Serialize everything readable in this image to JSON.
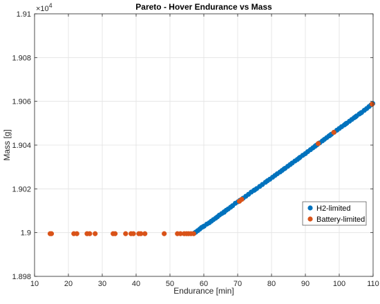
{
  "chart_data": {
    "type": "scatter",
    "title": "Pareto - Hover Endurance vs Mass",
    "xlabel": "Endurance [min]",
    "ylabel": "Mass [g]",
    "xlim": [
      10,
      110
    ],
    "ylim": [
      18980,
      19100
    ],
    "x_ticks": [
      10,
      20,
      30,
      40,
      50,
      60,
      70,
      80,
      90,
      100,
      110
    ],
    "y_ticks": [
      18980,
      19000,
      19020,
      19040,
      19060,
      19080,
      19100
    ],
    "y_tick_labels": [
      "1.898",
      "1.9",
      "1.902",
      "1.904",
      "1.906",
      "1.908",
      "1.91"
    ],
    "y_exponent": {
      "base": "×10",
      "power": "4"
    },
    "grid": true,
    "legend": "right",
    "series": [
      {
        "name": "H2-limited",
        "color": "#0072BD",
        "points": [
          [
            57.2,
            18999.8
          ],
          [
            57.6,
            19000.2
          ],
          [
            58.2,
            19000.9
          ],
          [
            58.8,
            19001.6
          ],
          [
            59.3,
            19002.3
          ],
          [
            60.1,
            19003.0
          ],
          [
            60.9,
            19003.9
          ],
          [
            61.6,
            19004.5
          ],
          [
            62.2,
            19005.2
          ],
          [
            62.8,
            19005.9
          ],
          [
            63.5,
            19006.6
          ],
          [
            64.0,
            19007.2
          ],
          [
            64.6,
            19008.0
          ],
          [
            65.3,
            19008.7
          ],
          [
            66.0,
            19009.5
          ],
          [
            66.6,
            19010.2
          ],
          [
            67.2,
            19010.8
          ],
          [
            67.9,
            19011.6
          ],
          [
            68.5,
            19012.3
          ],
          [
            69.3,
            19013.4
          ],
          [
            70.1,
            19014.1
          ],
          [
            70.7,
            19014.8
          ],
          [
            71.6,
            19015.7
          ],
          [
            72.4,
            19016.6
          ],
          [
            73.2,
            19017.5
          ],
          [
            74.0,
            19018.5
          ],
          [
            74.8,
            19019.3
          ],
          [
            75.6,
            19020.1
          ],
          [
            76.5,
            19021.1
          ],
          [
            77.3,
            19022.0
          ],
          [
            78.2,
            19023.0
          ],
          [
            78.8,
            19023.7
          ],
          [
            79.5,
            19024.4
          ],
          [
            80.3,
            19025.3
          ],
          [
            81.0,
            19026.1
          ],
          [
            81.7,
            19026.9
          ],
          [
            82.5,
            19027.7
          ],
          [
            83.1,
            19028.4
          ],
          [
            84.0,
            19029.4
          ],
          [
            84.8,
            19030.3
          ],
          [
            85.5,
            19031.1
          ],
          [
            86.1,
            19031.8
          ],
          [
            86.9,
            19032.7
          ],
          [
            87.6,
            19033.4
          ],
          [
            88.4,
            19034.4
          ],
          [
            89.2,
            19035.3
          ],
          [
            90.0,
            19036.1
          ],
          [
            90.7,
            19037.0
          ],
          [
            91.5,
            19037.9
          ],
          [
            92.2,
            19038.7
          ],
          [
            92.8,
            19039.4
          ],
          [
            93.5,
            19040.2
          ],
          [
            94.2,
            19041.0
          ],
          [
            95.0,
            19041.9
          ],
          [
            95.6,
            19042.6
          ],
          [
            96.3,
            19043.4
          ],
          [
            97.0,
            19044.2
          ],
          [
            97.7,
            19045.0
          ],
          [
            98.5,
            19045.9
          ],
          [
            99.3,
            19046.8
          ],
          [
            100.0,
            19047.6
          ],
          [
            100.7,
            19048.4
          ],
          [
            101.5,
            19049.2
          ],
          [
            102.2,
            19050.0
          ],
          [
            103.0,
            19050.9
          ],
          [
            103.7,
            19051.7
          ],
          [
            104.4,
            19052.5
          ],
          [
            105.1,
            19053.3
          ],
          [
            105.9,
            19054.2
          ],
          [
            106.6,
            19054.9
          ],
          [
            107.4,
            19055.9
          ],
          [
            108.1,
            19056.7
          ],
          [
            108.8,
            19057.6
          ],
          [
            109.4,
            19058.4
          ],
          [
            109.9,
            19059.0
          ],
          [
            66.0,
            19009.3
          ],
          [
            83.7,
            19029.1
          ],
          [
            88.1,
            19034.0
          ],
          [
            101.9,
            19049.7
          ],
          [
            106.4,
            19054.7
          ],
          [
            59.8,
            19002.7
          ],
          [
            75.0,
            19019.5
          ],
          [
            93.1,
            19039.8
          ],
          [
            97.3,
            19044.5
          ],
          [
            104.8,
            19052.9
          ]
        ]
      },
      {
        "name": "Battery-limited",
        "color": "#D95319",
        "points": [
          [
            14.6,
            18999.5
          ],
          [
            15.0,
            18999.5
          ],
          [
            21.6,
            18999.5
          ],
          [
            22.5,
            18999.5
          ],
          [
            25.5,
            18999.5
          ],
          [
            26.3,
            18999.5
          ],
          [
            27.9,
            18999.5
          ],
          [
            33.2,
            18999.5
          ],
          [
            33.8,
            18999.5
          ],
          [
            36.9,
            18999.5
          ],
          [
            38.5,
            18999.5
          ],
          [
            39.2,
            18999.5
          ],
          [
            40.8,
            18999.5
          ],
          [
            41.4,
            18999.5
          ],
          [
            42.6,
            18999.5
          ],
          [
            48.3,
            18999.5
          ],
          [
            52.2,
            18999.5
          ],
          [
            53.1,
            18999.5
          ],
          [
            54.2,
            18999.5
          ],
          [
            54.9,
            18999.5
          ],
          [
            55.5,
            18999.5
          ],
          [
            56.2,
            18999.5
          ],
          [
            57.0,
            18999.5
          ],
          [
            70.5,
            19014.3
          ],
          [
            71.2,
            19015.2
          ],
          [
            93.8,
            19040.7
          ],
          [
            98.4,
            19045.8
          ],
          [
            109.7,
            19058.7
          ]
        ]
      }
    ]
  }
}
